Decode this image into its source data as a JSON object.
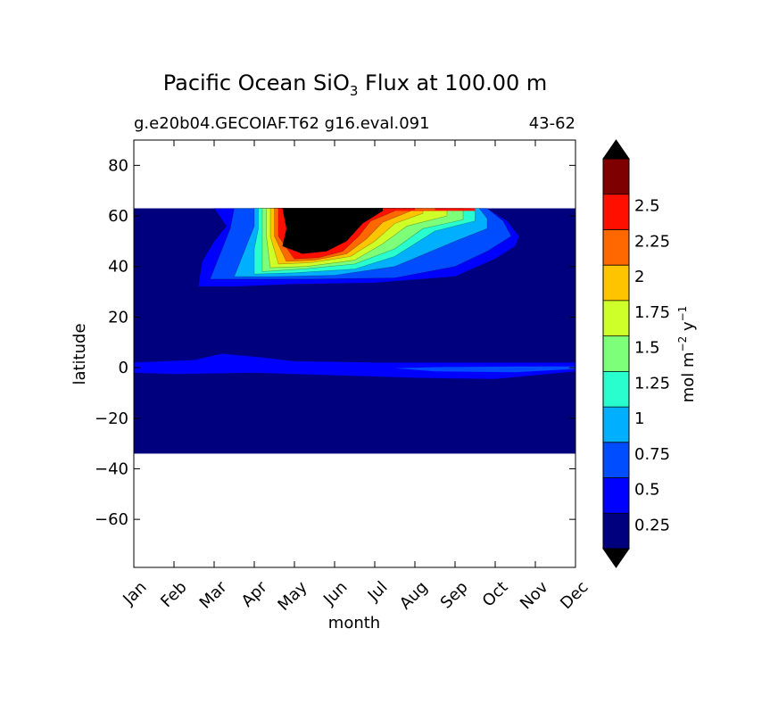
{
  "chart_data": {
    "type": "contourf",
    "title": {
      "prefix": "Pacific Ocean SiO",
      "subscript": "3",
      "suffix": " Flux at 100.00 m"
    },
    "subtitle_left": "g.e20b04.GECOIAF.T62 g16.eval.091",
    "subtitle_right": "43-62",
    "xlabel": "month",
    "ylabel": "latitude",
    "x_categories": [
      "Jan",
      "Feb",
      "Mar",
      "Apr",
      "May",
      "Jun",
      "Jul",
      "Aug",
      "Sep",
      "Oct",
      "Nov",
      "Dec"
    ],
    "xlim": [
      0,
      11
    ],
    "ylim": [
      -79,
      90
    ],
    "yticks": [
      -60,
      -40,
      -20,
      0,
      20,
      40,
      60,
      80
    ],
    "ytick_labels": [
      "−60",
      "−40",
      "−20",
      "0",
      "20",
      "40",
      "60",
      "80"
    ],
    "data_lat_range": [
      -34,
      63
    ],
    "colorbar": {
      "label_parts": [
        "mol m",
        "−2",
        " y",
        "−1"
      ],
      "levels": [
        0,
        0.25,
        0.5,
        0.75,
        1,
        1.25,
        1.5,
        1.75,
        2,
        2.25,
        2.5,
        2.75
      ],
      "tick_labels": [
        "0.25",
        "0.5",
        "0.75",
        "1",
        "1.25",
        "1.5",
        "1.75",
        "2",
        "2.25",
        "2.5"
      ],
      "colors": [
        "#00007f",
        "#0000ff",
        "#004cff",
        "#00b0ff",
        "#29ffce",
        "#7dff7a",
        "#ceff29",
        "#ffc400",
        "#ff6800",
        "#ff0f00",
        "#7f0000"
      ],
      "under_color": "#000000",
      "over_color": "#000000",
      "extend": "both"
    },
    "regions": [
      {
        "name": "background",
        "level": 0,
        "color": "#00007f"
      },
      {
        "name": "equatorial-band",
        "level": 0.25,
        "color": "#0000ff"
      },
      {
        "name": "northern-bloom",
        "level": 0.25,
        "color": "#0000ff"
      },
      {
        "name": "northern-bloom",
        "level": 0.5,
        "color": "#004cff"
      },
      {
        "name": "northern-bloom",
        "level": 0.75,
        "color": "#00b0ff"
      },
      {
        "name": "northern-bloom",
        "level": 1.0,
        "color": "#29ffce"
      },
      {
        "name": "northern-bloom",
        "level": 1.25,
        "color": "#7dff7a"
      },
      {
        "name": "northern-bloom",
        "level": 1.5,
        "color": "#ceff29"
      },
      {
        "name": "northern-bloom",
        "level": 1.75,
        "color": "#ffc400"
      },
      {
        "name": "northern-bloom",
        "level": 2.0,
        "color": "#ff6800"
      },
      {
        "name": "northern-bloom",
        "level": 2.25,
        "color": "#ff0f00"
      },
      {
        "name": "bloom-peak",
        "level": 2.75,
        "color": "#000000"
      }
    ]
  }
}
